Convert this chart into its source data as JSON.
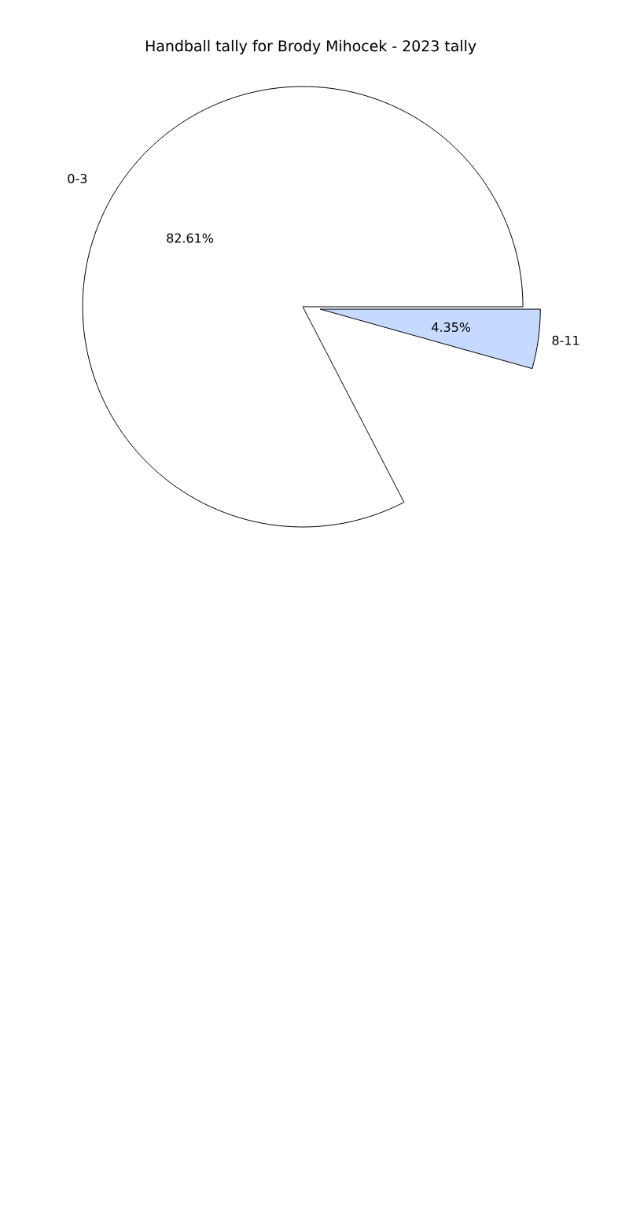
{
  "chart_data": {
    "type": "pie",
    "title": "Handball tally for Brody Mihocek - 2023 tally",
    "categories": [
      "0-3",
      "8-11"
    ],
    "values": [
      82.61,
      4.35
    ],
    "colors": [
      "#ffffff",
      "#c6d9ff"
    ],
    "value_labels": [
      "82.61%",
      "4.35%"
    ]
  }
}
